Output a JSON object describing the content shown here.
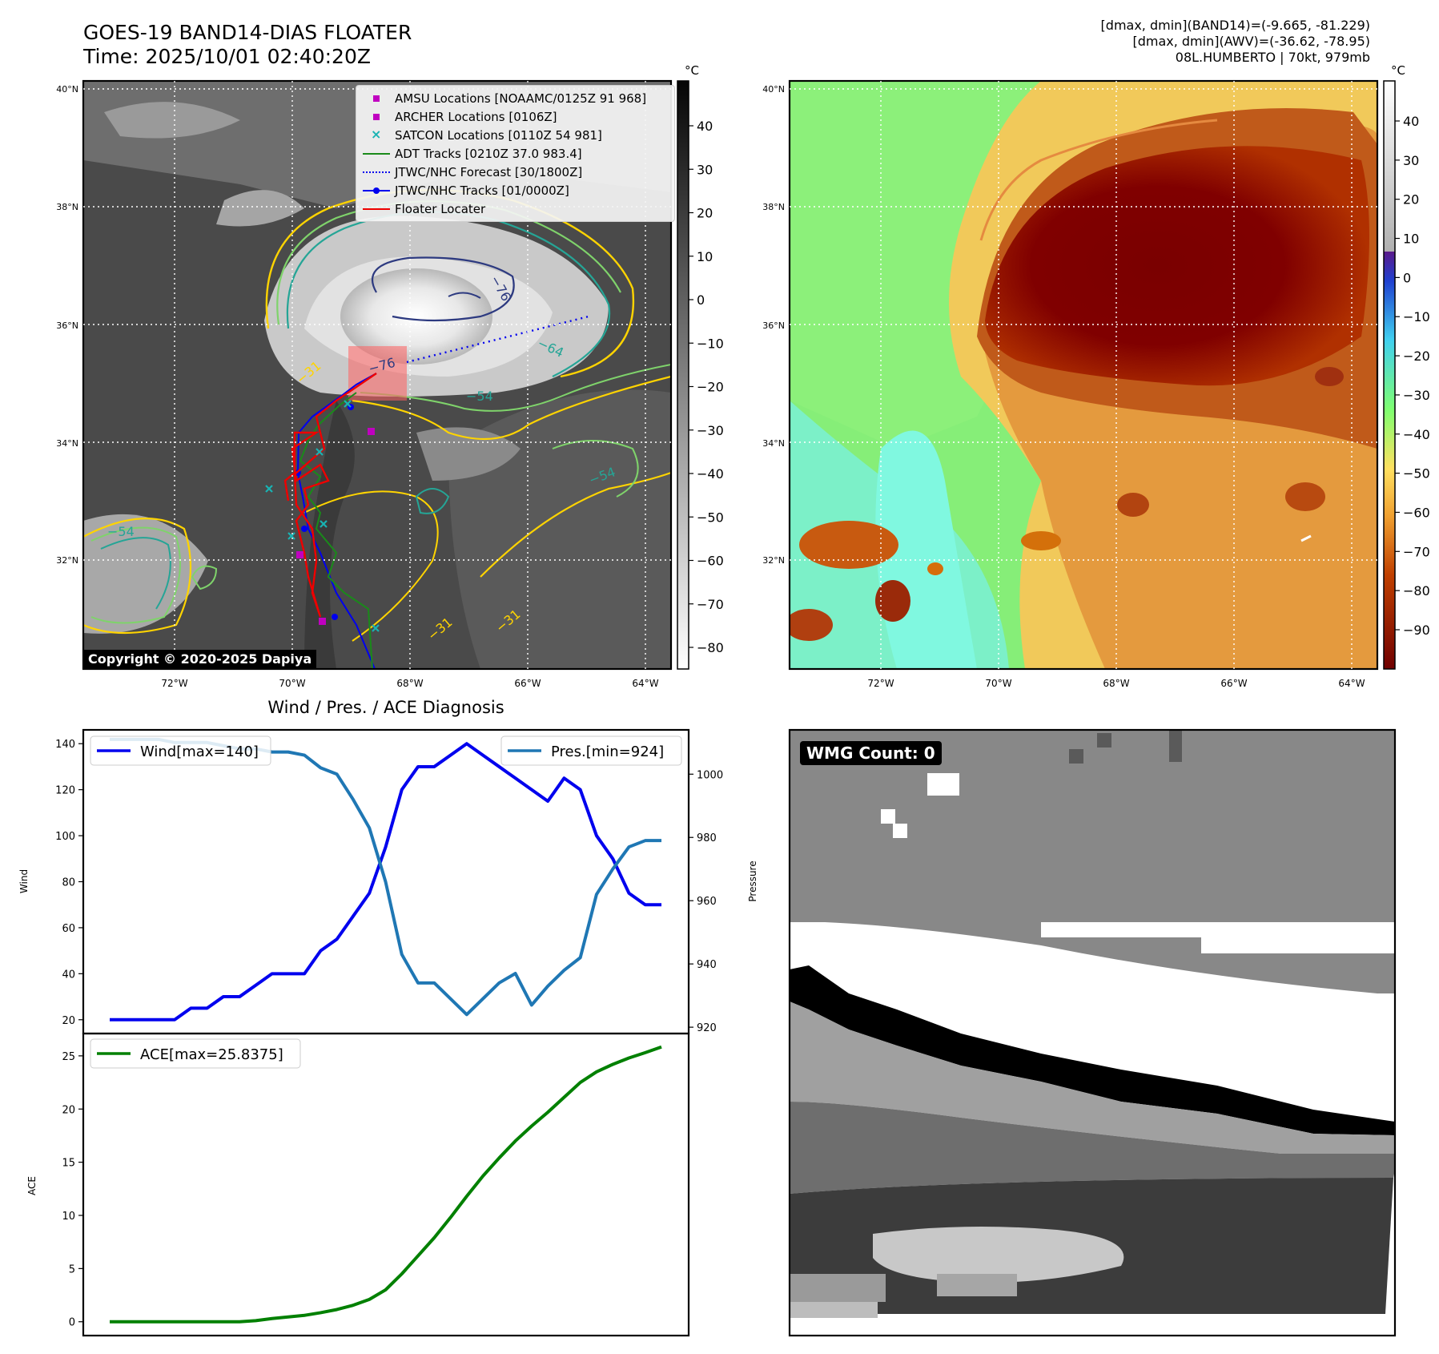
{
  "header": {
    "title_line1": "GOES-19 BAND14-DIAS FLOATER",
    "title_line2": "Time: 2025/10/01 02:40:20Z",
    "info_line1": "[dmax, dmin](BAND14)=(-9.665, -81.229)",
    "info_line2": "[dmax, dmin](AWV)=(-36.62, -78.95)",
    "info_line3": "08L.HUMBERTO | 70kt, 979mb"
  },
  "map_axes": {
    "lat_labels": [
      "40°N",
      "38°N",
      "36°N",
      "34°N",
      "32°N"
    ],
    "lon_labels": [
      "72°W",
      "70°W",
      "68°W",
      "66°W",
      "64°W"
    ],
    "copyright": "Copyright © 2020-2025 Dapiya"
  },
  "ir_panel": {
    "colorbar_unit": "°C",
    "colorbar_ticks": [
      "40",
      "30",
      "20",
      "10",
      "0",
      "−10",
      "−20",
      "−30",
      "−40",
      "−50",
      "−60",
      "−70",
      "−80"
    ],
    "contour_labels": [
      "−76",
      "−76",
      "−64",
      "−54",
      "−31",
      "−54",
      "−54",
      "−31",
      "−31"
    ],
    "legend": [
      {
        "label": "AMSU Locations [NOAAMC/0125Z 91 968]",
        "kind": "square",
        "color": "#c000c0"
      },
      {
        "label": "ARCHER Locations [0106Z]",
        "kind": "square",
        "color": "#c000c0"
      },
      {
        "label": "SATCON Locations [0110Z 54 981]",
        "kind": "cross",
        "color": "#19b3b3"
      },
      {
        "label": "ADT Tracks [0210Z 37.0 983.4]",
        "kind": "line",
        "color": "#1a8a1a"
      },
      {
        "label": "JTWC/NHC Forecast [30/1800Z]",
        "kind": "dotted",
        "color": "#0000ee"
      },
      {
        "label": "JTWC/NHC Tracks [01/0000Z]",
        "kind": "line-dot",
        "color": "#0000ee"
      },
      {
        "label": "Floater Locater",
        "kind": "line",
        "color": "#ee0000"
      }
    ]
  },
  "awv_panel": {
    "colorbar_unit": "°C",
    "colorbar_ticks": [
      "40",
      "30",
      "20",
      "10",
      "0",
      "−10",
      "−20",
      "−30",
      "−40",
      "−50",
      "−60",
      "−70",
      "−80",
      "−90"
    ]
  },
  "diag_title": "Wind / Pres. / ACE Diagnosis",
  "chart_data": [
    {
      "type": "line",
      "title": "Wind / Pres. / ACE Diagnosis",
      "xlabel": "",
      "ylabel": "Wind",
      "ylabel_right": "Pressure",
      "ylim": [
        14,
        146
      ],
      "ylim_right": [
        918,
        1014
      ],
      "yticks": [
        20,
        40,
        60,
        80,
        100,
        120,
        140
      ],
      "yticks_right": [
        920,
        940,
        960,
        980,
        1000
      ],
      "series": [
        {
          "name": "Wind[max=140]",
          "axis": "left",
          "color": "#0000ee",
          "values": [
            20,
            20,
            20,
            20,
            20,
            25,
            25,
            30,
            30,
            35,
            40,
            40,
            40,
            50,
            55,
            65,
            75,
            95,
            120,
            130,
            130,
            135,
            140,
            135,
            130,
            125,
            120,
            115,
            125,
            120,
            100,
            90,
            75,
            70,
            70
          ]
        },
        {
          "name": "Pres.[min=924]",
          "axis": "right",
          "color": "#1f77b4",
          "values": [
            1011,
            1011,
            1011,
            1011,
            1010,
            1010,
            1010,
            1009,
            1008,
            1008,
            1007,
            1007,
            1006,
            1002,
            1000,
            992,
            983,
            966,
            943,
            934,
            934,
            929,
            924,
            929,
            934,
            937,
            927,
            933,
            938,
            942,
            962,
            970,
            977,
            979,
            979
          ]
        }
      ]
    },
    {
      "type": "line",
      "title": "",
      "xlabel": "",
      "ylabel": "ACE",
      "ylim": [
        -1.3,
        27.1
      ],
      "yticks": [
        0,
        5,
        10,
        15,
        20,
        25
      ],
      "series": [
        {
          "name": "ACE[max=25.8375]",
          "color": "#008000",
          "values": [
            0,
            0,
            0,
            0,
            0,
            0,
            0,
            0,
            0,
            0.1,
            0.3,
            0.45,
            0.6,
            0.85,
            1.15,
            1.55,
            2.1,
            3.0,
            4.5,
            6.2,
            7.9,
            9.8,
            11.8,
            13.7,
            15.4,
            17.0,
            18.4,
            19.7,
            21.1,
            22.5,
            23.5,
            24.2,
            24.8,
            25.3,
            25.8375
          ]
        }
      ]
    }
  ],
  "wmg_panel": {
    "label": "WMG Count: 0"
  }
}
